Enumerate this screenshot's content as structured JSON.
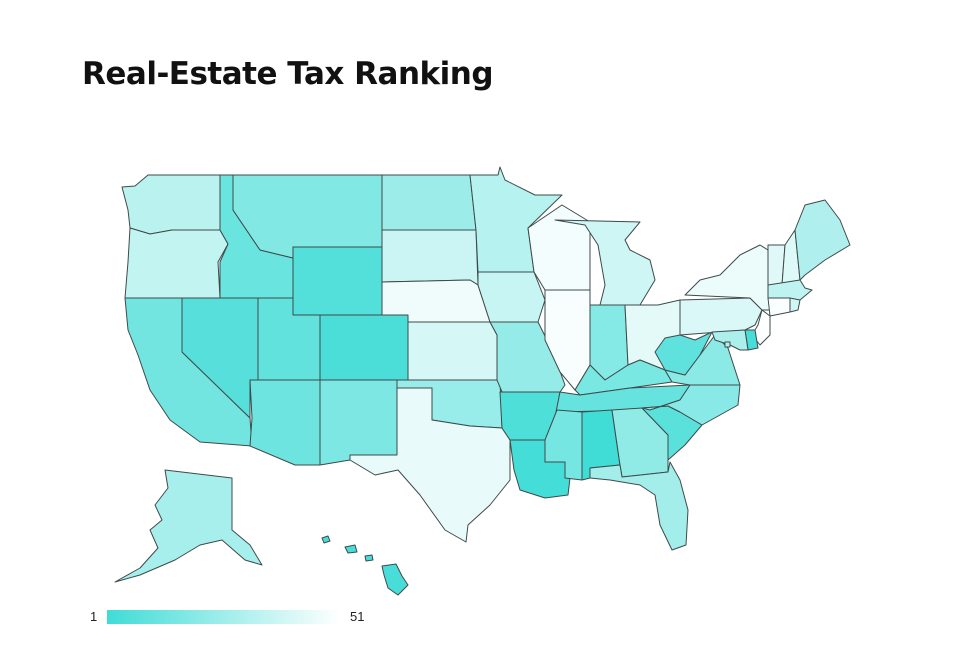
{
  "title": "Real-Estate Tax Ranking",
  "legend": {
    "min_label": "1",
    "max_label": "51",
    "color_low_rank": "#40dcd6",
    "color_high_rank": "#ffffff"
  },
  "states": [
    {
      "id": "WA",
      "rank": 33
    },
    {
      "id": "OR",
      "rank": 35
    },
    {
      "id": "CA",
      "rank": 14
    },
    {
      "id": "NV",
      "rank": 7
    },
    {
      "id": "ID",
      "rank": 12
    },
    {
      "id": "MT",
      "rank": 18
    },
    {
      "id": "WY",
      "rank": 6
    },
    {
      "id": "UT",
      "rank": 10
    },
    {
      "id": "AZ",
      "rank": 13
    },
    {
      "id": "CO",
      "rank": 4
    },
    {
      "id": "NM",
      "rank": 17
    },
    {
      "id": "ND",
      "rank": 25
    },
    {
      "id": "SD",
      "rank": 37
    },
    {
      "id": "NE",
      "rank": 47
    },
    {
      "id": "KS",
      "rank": 40
    },
    {
      "id": "OK",
      "rank": 24
    },
    {
      "id": "TX",
      "rank": 45
    },
    {
      "id": "MN",
      "rank": 32
    },
    {
      "id": "IA",
      "rank": 36
    },
    {
      "id": "MO",
      "rank": 23
    },
    {
      "id": "AR",
      "rank": 5
    },
    {
      "id": "LA",
      "rank": 2
    },
    {
      "id": "WI",
      "rank": 48
    },
    {
      "id": "IL",
      "rank": 49
    },
    {
      "id": "MI",
      "rank": 38
    },
    {
      "id": "IN",
      "rank": 19
    },
    {
      "id": "OH",
      "rank": 44
    },
    {
      "id": "KY",
      "rank": 16
    },
    {
      "id": "TN",
      "rank": 11
    },
    {
      "id": "MS",
      "rank": 15
    },
    {
      "id": "AL",
      "rank": 1
    },
    {
      "id": "GA",
      "rank": 22
    },
    {
      "id": "FL",
      "rank": 27
    },
    {
      "id": "SC",
      "rank": 8
    },
    {
      "id": "NC",
      "rank": 20
    },
    {
      "id": "VA",
      "rank": 21
    },
    {
      "id": "WV",
      "rank": 9
    },
    {
      "id": "PA",
      "rank": 41
    },
    {
      "id": "NY",
      "rank": 46
    },
    {
      "id": "VT",
      "rank": 43
    },
    {
      "id": "NH",
      "rank": 42
    },
    {
      "id": "ME",
      "rank": 30
    },
    {
      "id": "MA",
      "rank": 34
    },
    {
      "id": "CT",
      "rank": 50
    },
    {
      "id": "RI",
      "rank": 39
    },
    {
      "id": "NJ",
      "rank": 51
    },
    {
      "id": "DE",
      "rank": 3
    },
    {
      "id": "MD",
      "rank": 29
    },
    {
      "id": "DC",
      "rank": 31
    },
    {
      "id": "AK",
      "rank": 28
    },
    {
      "id": "HI",
      "rank": 3
    }
  ]
}
